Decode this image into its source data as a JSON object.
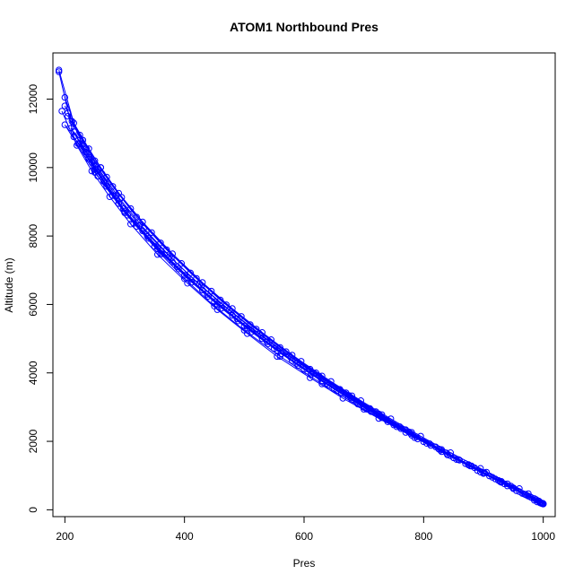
{
  "chart_data": {
    "type": "line",
    "title": "ATOM1 Northbound Pres",
    "xlabel": "Pres",
    "ylabel": "Altitude (m)",
    "xlim": [
      180,
      1020
    ],
    "ylim": [
      -200,
      13350
    ],
    "xticks": [
      200,
      400,
      600,
      800,
      1000
    ],
    "yticks": [
      0,
      2000,
      4000,
      6000,
      8000,
      10000,
      12000
    ],
    "grid": false,
    "legend": "none",
    "color": "#0000ff",
    "markers": "open-circle",
    "series": [
      {
        "x": [
          998,
          975,
          950,
          900,
          850,
          800,
          750,
          700,
          650,
          600,
          550,
          500,
          450,
          400,
          350,
          300,
          250,
          200
        ],
        "y": [
          180,
          400,
          620,
          1060,
          1520,
          1990,
          2480,
          2990,
          3530,
          4100,
          4710,
          5370,
          6080,
          6850,
          7700,
          8680,
          9860,
          11250
        ]
      },
      {
        "x": [
          995,
          970,
          930,
          880,
          830,
          780,
          730,
          680,
          630,
          580,
          530,
          480,
          430,
          380,
          330,
          290,
          260,
          230,
          205
        ],
        "y": [
          200,
          450,
          800,
          1280,
          1760,
          2260,
          2780,
          3330,
          3910,
          4520,
          5180,
          5880,
          6640,
          7480,
          8410,
          9250,
          10000,
          10800,
          11600
        ]
      },
      {
        "x": [
          990,
          960,
          920,
          860,
          810,
          760,
          710,
          660,
          610,
          560,
          510,
          460,
          410,
          360,
          310,
          270,
          240,
          215,
          190
        ],
        "y": [
          230,
          530,
          900,
          1450,
          1930,
          2430,
          2960,
          3520,
          4110,
          4740,
          5410,
          6130,
          6920,
          7800,
          8800,
          9720,
          10550,
          11300,
          12850
        ]
      },
      {
        "x": [
          1000,
          980,
          940,
          890,
          840,
          790,
          740,
          690,
          640,
          590,
          540,
          490,
          440,
          390,
          340,
          300,
          270,
          245
        ],
        "y": [
          170,
          360,
          700,
          1150,
          1600,
          2070,
          2570,
          3090,
          3640,
          4220,
          4850,
          5520,
          6240,
          7040,
          7930,
          8730,
          9450,
          10150
        ]
      },
      {
        "x": [
          985,
          955,
          910,
          870,
          820,
          770,
          720,
          670,
          620,
          570,
          520,
          470,
          420,
          370,
          320,
          280,
          250,
          225,
          200
        ],
        "y": [
          280,
          560,
          990,
          1350,
          1840,
          2340,
          2870,
          3420,
          4000,
          4620,
          5280,
          5990,
          6760,
          7600,
          8550,
          9450,
          10200,
          10950,
          11800
        ]
      },
      {
        "x": [
          997,
          965,
          935,
          895,
          855,
          805,
          755,
          705,
          655,
          605,
          555,
          505,
          455,
          405,
          355,
          305,
          265,
          235,
          210
        ],
        "y": [
          190,
          480,
          760,
          1100,
          1470,
          1940,
          2430,
          2940,
          3480,
          4050,
          4660,
          5310,
          6010,
          6780,
          7630,
          8610,
          9600,
          10450,
          11150
        ]
      },
      {
        "x": [
          993,
          975,
          940,
          895,
          845,
          795,
          745,
          695,
          645,
          595,
          545,
          495,
          445,
          395,
          345,
          295,
          260,
          230,
          205
        ],
        "y": [
          250,
          470,
          760,
          1210,
          1670,
          2150,
          2660,
          3190,
          3750,
          4340,
          4970,
          5650,
          6390,
          7200,
          8100,
          9130,
          10000,
          10800,
          11500
        ]
      },
      {
        "x": [
          1000,
          985,
          950,
          915,
          875,
          830,
          780,
          730,
          680,
          630,
          580,
          530,
          480,
          430,
          380,
          330,
          290,
          255,
          225
        ],
        "y": [
          180,
          330,
          640,
          950,
          1320,
          1700,
          2180,
          2690,
          3210,
          3770,
          4360,
          5000,
          5680,
          6420,
          7240,
          8150,
          8950,
          9750,
          10700
        ]
      },
      {
        "x": [
          988,
          960,
          905,
          845,
          785,
          725,
          665,
          610,
          555,
          505,
          455,
          405,
          355,
          310,
          275,
          245,
          220,
          195
        ],
        "y": [
          300,
          620,
          1100,
          1580,
          2110,
          2670,
          3260,
          3860,
          4480,
          5150,
          5850,
          6620,
          7460,
          8350,
          9150,
          9900,
          10650,
          11650
        ]
      },
      {
        "x": [
          996,
          978,
          946,
          902,
          858,
          812,
          762,
          712,
          662,
          612,
          562,
          512,
          462,
          412,
          362,
          315,
          280,
          250,
          222
        ],
        "y": [
          210,
          380,
          690,
          1080,
          1470,
          1880,
          2370,
          2870,
          3400,
          3960,
          4560,
          5200,
          5890,
          6650,
          7480,
          8370,
          9180,
          9950,
          10700
        ]
      },
      {
        "x": [
          999,
          970,
          925,
          875,
          825,
          775,
          725,
          675,
          625,
          575,
          525,
          475,
          425,
          375,
          325,
          285,
          255,
          228,
          200
        ],
        "y": [
          190,
          450,
          860,
          1310,
          1780,
          2280,
          2800,
          3340,
          3910,
          4510,
          5150,
          5840,
          6590,
          7400,
          8310,
          9180,
          9950,
          10700,
          12050
        ]
      },
      {
        "x": [
          992,
          950,
          900,
          840,
          770,
          700,
          630,
          560,
          500,
          450,
          400,
          360,
          320,
          290,
          265,
          240,
          215,
          190
        ],
        "y": [
          260,
          640,
          1090,
          1610,
          2260,
          2940,
          3680,
          4480,
          5250,
          5950,
          6750,
          7480,
          8280,
          8950,
          9600,
          10250,
          10900,
          12800
        ]
      },
      {
        "x": [
          994,
          968,
          930,
          885,
          838,
          788,
          738,
          688,
          638,
          588,
          538,
          488,
          438,
          388,
          338,
          298,
          268,
          240,
          215
        ],
        "y": [
          220,
          460,
          830,
          1230,
          1660,
          2130,
          2630,
          3150,
          3700,
          4280,
          4910,
          5580,
          6300,
          7100,
          7990,
          8800,
          9550,
          10300,
          11050
        ]
      },
      {
        "x": [
          1000,
          972,
          928,
          878,
          828,
          778,
          728,
          678,
          628,
          578,
          528,
          478,
          428,
          378,
          332,
          292,
          262,
          236,
          212
        ],
        "y": [
          170,
          430,
          820,
          1280,
          1740,
          2230,
          2740,
          3280,
          3850,
          4450,
          5090,
          5780,
          6530,
          7360,
          8230,
          9080,
          9820,
          10550,
          11350
        ]
      }
    ]
  }
}
